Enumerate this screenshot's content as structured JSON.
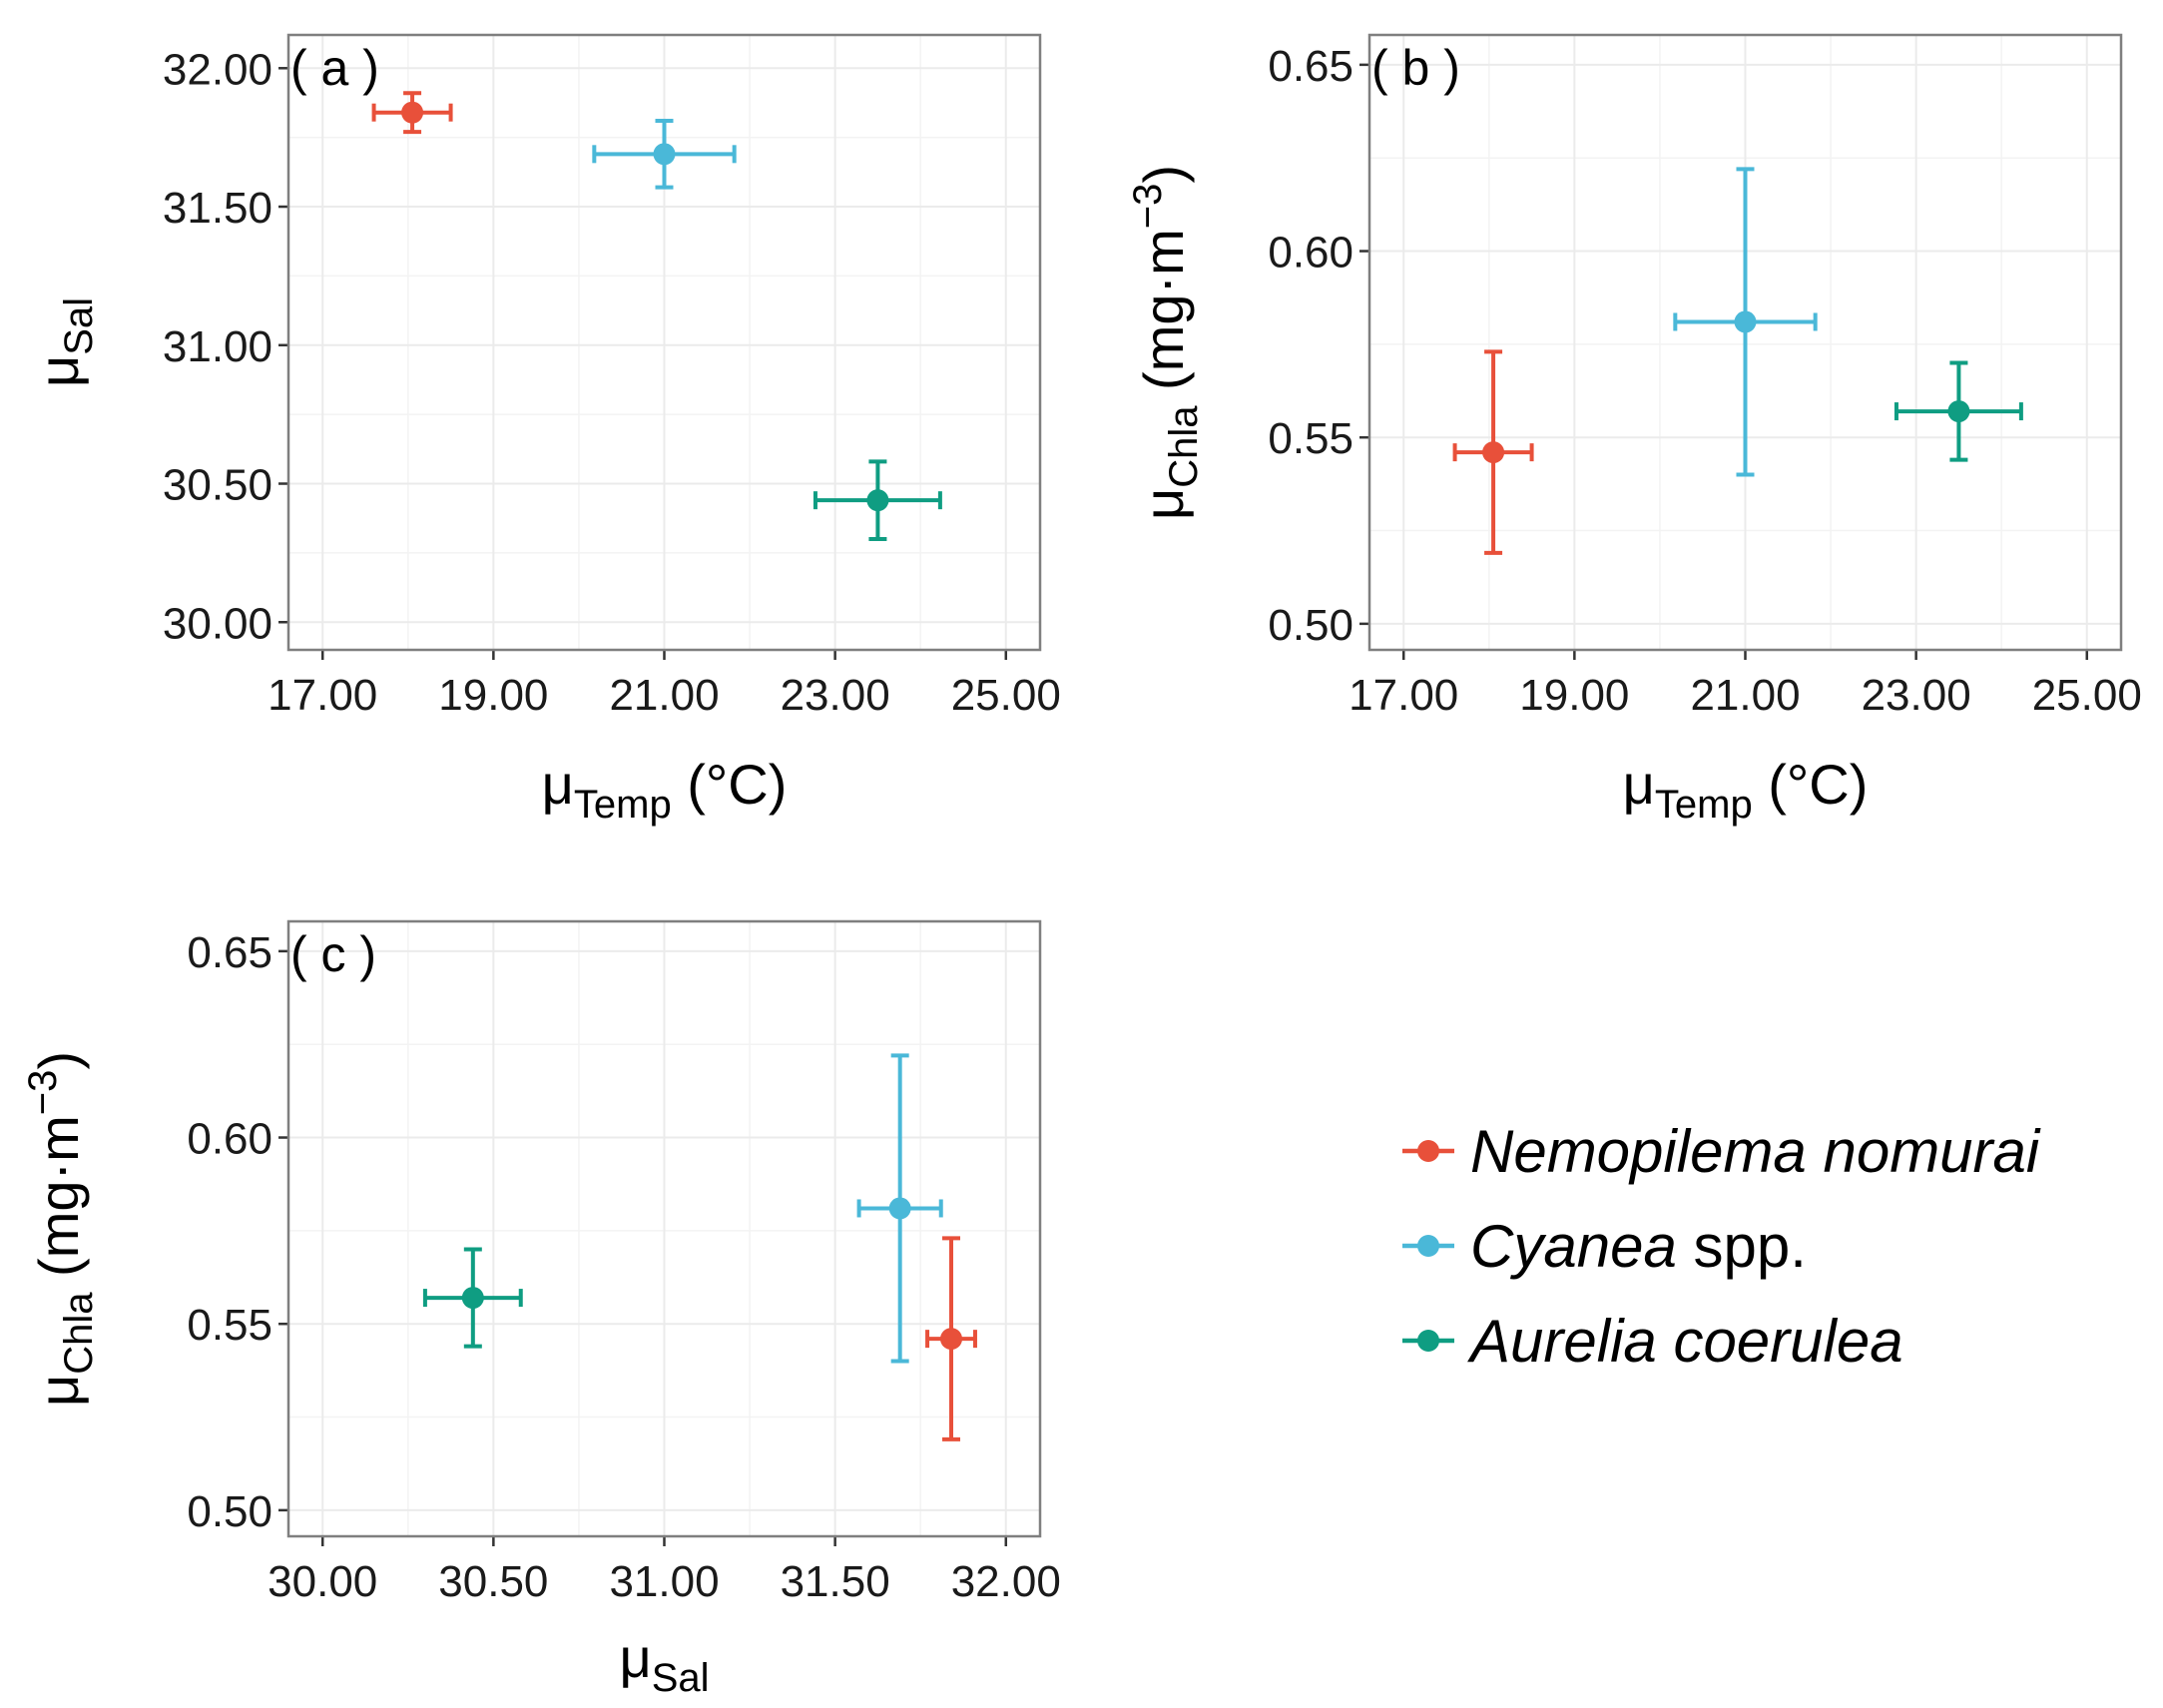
{
  "colors": {
    "Nemopilema nomurai": "#e8503a",
    "Cyanea spp.": "#4ab8d8",
    "Aurelia coerulea": "#0f9d82"
  },
  "legend": {
    "items": [
      {
        "series": "Nemopilema nomurai",
        "italic": "Nemopilema nomurai",
        "plain": ""
      },
      {
        "series": "Cyanea spp.",
        "italic": "Cyanea",
        "plain": " spp."
      },
      {
        "series": "Aurelia coerulea",
        "italic": "Aurelia coerulea",
        "plain": ""
      }
    ]
  },
  "chart_data": [
    {
      "panel_label": "( a )",
      "type": "scatter",
      "error_bars": true,
      "xlabel": {
        "mu": "μ",
        "sub": "Temp",
        "unit": " (°C)"
      },
      "ylabel": {
        "mu": "μ",
        "sub": "Sal",
        "unit": ""
      },
      "xlim": [
        16.6,
        25.4
      ],
      "ylim": [
        29.9,
        32.12
      ],
      "xticks": [
        17,
        19,
        21,
        23,
        25
      ],
      "xtick_labels": [
        "17.00",
        "19.00",
        "21.00",
        "23.00",
        "25.00"
      ],
      "yticks": [
        30,
        30.5,
        31,
        31.5,
        32
      ],
      "ytick_labels": [
        "30.00",
        "30.50",
        "31.00",
        "31.50",
        "32.00"
      ],
      "series": [
        {
          "name": "Nemopilema nomurai",
          "x": 18.05,
          "y": 31.84,
          "xerr": 0.45,
          "yerr": 0.07
        },
        {
          "name": "Cyanea spp.",
          "x": 21.0,
          "y": 31.69,
          "xerr": 0.82,
          "yerr": 0.12
        },
        {
          "name": "Aurelia coerulea",
          "x": 23.5,
          "y": 30.44,
          "xerr": 0.73,
          "yerr": 0.14
        }
      ]
    },
    {
      "panel_label": "( b )",
      "type": "scatter",
      "error_bars": true,
      "xlabel": {
        "mu": "μ",
        "sub": "Temp",
        "unit": " (°C)"
      },
      "ylabel": {
        "mu": "μ",
        "sub": "Chla",
        "unit": " (mg·m",
        "sup": "−3",
        "close": ")"
      },
      "xlim": [
        16.6,
        25.4
      ],
      "ylim": [
        0.493,
        0.658
      ],
      "xticks": [
        17,
        19,
        21,
        23,
        25
      ],
      "xtick_labels": [
        "17.00",
        "19.00",
        "21.00",
        "23.00",
        "25.00"
      ],
      "yticks": [
        0.5,
        0.55,
        0.6,
        0.65
      ],
      "ytick_labels": [
        "0.50",
        "0.55",
        "0.60",
        "0.65"
      ],
      "series": [
        {
          "name": "Nemopilema nomurai",
          "x": 18.05,
          "y": 0.546,
          "xerr": 0.45,
          "yerr": 0.027
        },
        {
          "name": "Cyanea spp.",
          "x": 21.0,
          "y": 0.581,
          "xerr": 0.82,
          "yerr": 0.041
        },
        {
          "name": "Aurelia coerulea",
          "x": 23.5,
          "y": 0.557,
          "xerr": 0.73,
          "yerr": 0.013
        }
      ]
    },
    {
      "panel_label": "( c )",
      "type": "scatter",
      "error_bars": true,
      "xlabel": {
        "mu": "μ",
        "sub": "Sal",
        "unit": ""
      },
      "ylabel": {
        "mu": "μ",
        "sub": "Chla",
        "unit": " (mg·m",
        "sup": "−3",
        "close": ")"
      },
      "xlim": [
        29.9,
        32.1
      ],
      "ylim": [
        0.493,
        0.658
      ],
      "xticks": [
        30,
        30.5,
        31,
        31.5,
        32
      ],
      "xtick_labels": [
        "30.00",
        "30.50",
        "31.00",
        "31.50",
        "32.00"
      ],
      "yticks": [
        0.5,
        0.55,
        0.6,
        0.65
      ],
      "ytick_labels": [
        "0.50",
        "0.55",
        "0.60",
        "0.65"
      ],
      "series": [
        {
          "name": "Nemopilema nomurai",
          "x": 31.84,
          "y": 0.546,
          "xerr": 0.07,
          "yerr": 0.027
        },
        {
          "name": "Cyanea spp.",
          "x": 31.69,
          "y": 0.581,
          "xerr": 0.12,
          "yerr": 0.041
        },
        {
          "name": "Aurelia coerulea",
          "x": 30.44,
          "y": 0.557,
          "xerr": 0.14,
          "yerr": 0.013
        }
      ]
    }
  ]
}
